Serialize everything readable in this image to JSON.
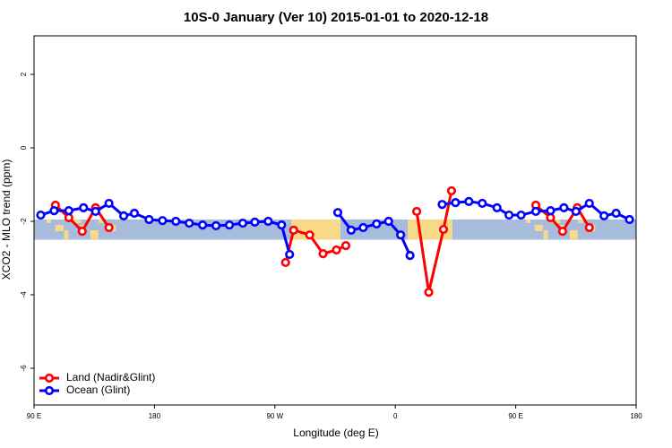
{
  "chart_data": {
    "type": "line",
    "title": "10S-0 January (Ver 10)   2015-01-01 to 2020-12-18",
    "x_label": "Longitude (deg E)",
    "y_label": "XCO2 - MLO trend (ppm)",
    "xlim": [
      90,
      540
    ],
    "ylim": [
      -7,
      3.05
    ],
    "xticks": [
      {
        "value": 90,
        "label": "90 E"
      },
      {
        "value": 180,
        "label": "180"
      },
      {
        "value": 270,
        "label": "90 W"
      },
      {
        "value": 360,
        "label": "0"
      },
      {
        "value": 450,
        "label": "90 E"
      },
      {
        "value": 540,
        "label": "180"
      }
    ],
    "yticks": [
      -6,
      -4,
      -2,
      0,
      2
    ],
    "shaded_band": [
      -2.5,
      -1.95
    ],
    "legend": "bottom-left",
    "series": [
      {
        "name": "Land (Nadir&Glint)",
        "color": "#ff0000",
        "x": [
          106,
          116,
          126,
          136,
          146,
          200,
          278,
          284,
          296,
          306,
          316,
          323,
          350,
          376,
          385,
          396,
          402,
          430,
          465,
          476,
          485,
          496,
          505
        ],
        "values": [
          -1.56,
          -1.9,
          -2.27,
          -1.63,
          -2.17,
          null,
          -3.12,
          -2.24,
          -2.37,
          -2.88,
          -2.78,
          -2.66,
          null,
          -1.73,
          -3.93,
          -2.22,
          -1.17,
          null,
          -1.56,
          -1.9,
          -2.27,
          -1.63,
          -2.17
        ]
      },
      {
        "name": "Ocean (Glint)",
        "color": "#0000ff",
        "x": [
          95,
          105,
          116,
          127,
          136,
          146,
          157,
          165,
          176,
          186,
          196,
          206,
          216,
          226,
          236,
          246,
          255,
          265,
          275,
          281,
          300,
          317,
          327,
          336,
          346,
          355,
          364,
          371,
          385,
          395,
          405,
          415,
          425,
          436,
          445,
          454,
          465,
          476,
          486,
          495,
          505,
          516,
          525,
          535
        ],
        "values": [
          -1.83,
          -1.71,
          -1.71,
          -1.63,
          -1.73,
          -1.51,
          -1.85,
          -1.78,
          -1.95,
          -1.98,
          -2.0,
          -2.05,
          -2.1,
          -2.12,
          -2.1,
          -2.05,
          -2.02,
          -2.0,
          -2.1,
          -2.9,
          null,
          -1.76,
          -2.24,
          -2.17,
          -2.07,
          -2.0,
          -2.37,
          -2.93,
          null,
          -1.54,
          -1.49,
          -1.46,
          -1.51,
          -1.63,
          -1.83,
          -1.83,
          -1.73,
          -1.71,
          -1.63,
          -1.73,
          -1.51,
          -1.85,
          -1.78,
          -1.95
        ]
      }
    ]
  }
}
